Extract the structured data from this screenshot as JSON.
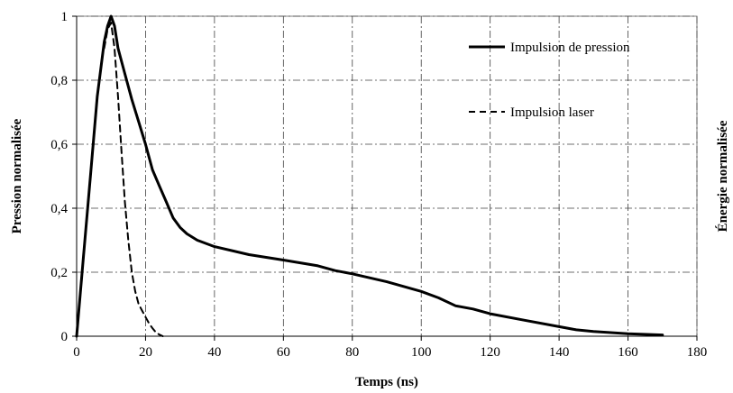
{
  "chart_data": {
    "type": "line",
    "xlabel": "Temps (ns)",
    "ylabel": "Pression normalisée",
    "ylabel_right": "Énergie normalisée",
    "xlim": [
      0,
      180
    ],
    "ylim": [
      0,
      1
    ],
    "x_ticks": [
      0,
      20,
      40,
      60,
      80,
      100,
      120,
      140,
      160,
      180
    ],
    "y_ticks": [
      0,
      0.2,
      0.4,
      0.6,
      0.8,
      1
    ],
    "x_tick_labels": [
      "0",
      "20",
      "40",
      "60",
      "80",
      "100",
      "120",
      "140",
      "160",
      "180"
    ],
    "y_tick_labels": [
      "0",
      "0,2",
      "0,4",
      "0,6",
      "0,8",
      "1"
    ],
    "grid": true,
    "grid_style": "dash-dot",
    "legend": "top-right",
    "series": [
      {
        "name": "Impulsion de pression",
        "style": "solid",
        "color": "#000000",
        "x": [
          0,
          2,
          4,
          6,
          8,
          9,
          10,
          11,
          12,
          14,
          16,
          18,
          20,
          22,
          24,
          26,
          28,
          30,
          32,
          35,
          40,
          50,
          60,
          70,
          75,
          80,
          90,
          100,
          105,
          110,
          115,
          120,
          130,
          140,
          145,
          150,
          160,
          170
        ],
        "y": [
          0,
          0.25,
          0.5,
          0.75,
          0.92,
          0.97,
          1.0,
          0.97,
          0.9,
          0.82,
          0.74,
          0.67,
          0.6,
          0.52,
          0.47,
          0.42,
          0.37,
          0.34,
          0.32,
          0.3,
          0.28,
          0.255,
          0.238,
          0.22,
          0.205,
          0.195,
          0.17,
          0.14,
          0.12,
          0.095,
          0.085,
          0.07,
          0.05,
          0.03,
          0.02,
          0.015,
          0.008,
          0.004
        ]
      },
      {
        "name": "Impulsion laser",
        "style": "dashed",
        "color": "#000000",
        "x": [
          8,
          9,
          10,
          11,
          12,
          13,
          14,
          15,
          16,
          17,
          18,
          19,
          20,
          21,
          22,
          23,
          24,
          25
        ],
        "y": [
          0.9,
          0.96,
          0.98,
          0.9,
          0.75,
          0.58,
          0.42,
          0.3,
          0.2,
          0.14,
          0.1,
          0.08,
          0.06,
          0.04,
          0.025,
          0.012,
          0.005,
          0.0
        ]
      }
    ]
  }
}
